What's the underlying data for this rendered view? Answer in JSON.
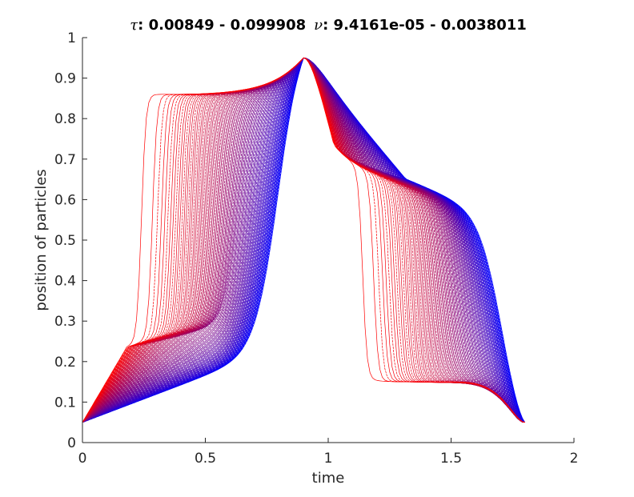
{
  "chart_data": {
    "type": "line",
    "title": {
      "tau_symbol": "τ",
      "tau_text": ": 0.00849 - 0.099908",
      "nu_symbol": "ν",
      "nu_text": ": 9.4161e-05 - 0.0038011"
    },
    "xlabel": "time",
    "ylabel": "position of particles",
    "xlim": [
      0,
      2
    ],
    "ylim": [
      0,
      1
    ],
    "xticks": [
      0,
      0.5,
      1,
      1.5,
      2
    ],
    "xtick_labels": [
      "0",
      "0.5",
      "1",
      "1.5",
      "2"
    ],
    "yticks": [
      0,
      0.1,
      0.2,
      0.3,
      0.4,
      0.5,
      0.6,
      0.7,
      0.8,
      0.9,
      1
    ],
    "ytick_labels": [
      "0",
      "0.1",
      "0.2",
      "0.3",
      "0.4",
      "0.5",
      "0.6",
      "0.7",
      "0.8",
      "0.9",
      "1"
    ],
    "grid": false,
    "legend": "none",
    "color_start": "#0000ff",
    "color_end": "#ff0000",
    "series_family": {
      "count": 100,
      "start_position": 0.05,
      "peak_time": 0.9,
      "peak_position": 0.95,
      "end_time": 1.8,
      "end_position": 0.05,
      "rise_plateau_min": 0.85,
      "rise_plateau_max": 0.86,
      "fall_plateau_min": 0.14,
      "fall_plateau_max": 0.15,
      "rise_switch_time_fast": 0.24,
      "rise_switch_time_slow": 0.8,
      "fall_switch_time_fast": 1.14,
      "fall_switch_time_slow": 1.7,
      "reference_points": [
        {
          "series": "blue (slowest)",
          "x": 0.5,
          "y": 0.25
        },
        {
          "series": "blue (slowest)",
          "x": 0.8,
          "y": 0.8
        },
        {
          "series": "blue (slowest)",
          "x": 1.2,
          "y": 0.66
        },
        {
          "series": "blue (slowest)",
          "x": 1.6,
          "y": 0.3
        },
        {
          "series": "red (fastest)",
          "x": 0.25,
          "y": 0.85
        },
        {
          "series": "red (fastest)",
          "x": 1.15,
          "y": 0.15
        }
      ]
    }
  }
}
